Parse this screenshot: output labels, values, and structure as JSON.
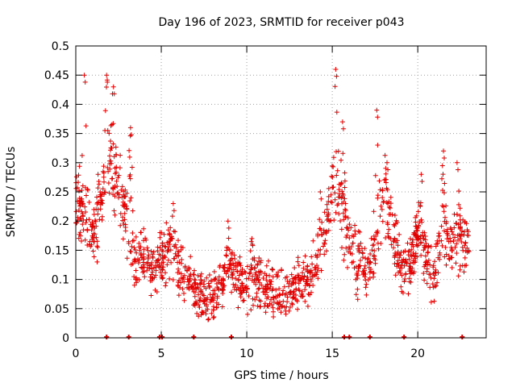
{
  "chart_data": {
    "type": "scatter",
    "title": "Day 196 of 2023, SRMTID for receiver p043",
    "xlabel": "GPS time / hours",
    "ylabel": "SRMTID / TECUs",
    "xlim": [
      0,
      24
    ],
    "ylim": [
      0,
      0.5
    ],
    "x_ticks": [
      0,
      5,
      10,
      15,
      20
    ],
    "y_ticks": [
      0,
      0.05,
      0.1,
      0.15,
      0.2,
      0.25,
      0.3,
      0.35,
      0.4,
      0.45,
      0.5
    ],
    "x_tick_labels": [
      "0",
      "5",
      "10",
      "15",
      "20"
    ],
    "y_tick_labels": [
      "0",
      "0.05",
      "0.1",
      "0.15",
      "0.2",
      "0.25",
      "0.3",
      "0.35",
      "0.4",
      "0.45",
      "0.5"
    ],
    "grid": true,
    "marker": "+",
    "color": "#e00000",
    "trend": [
      [
        0.0,
        0.24
      ],
      [
        0.5,
        0.2
      ],
      [
        1.0,
        0.17
      ],
      [
        1.5,
        0.22
      ],
      [
        2.0,
        0.28
      ],
      [
        2.5,
        0.24
      ],
      [
        3.0,
        0.2
      ],
      [
        3.5,
        0.12
      ],
      [
        4.0,
        0.14
      ],
      [
        4.5,
        0.11
      ],
      [
        5.0,
        0.13
      ],
      [
        5.5,
        0.16
      ],
      [
        6.0,
        0.12
      ],
      [
        6.5,
        0.1
      ],
      [
        7.0,
        0.08
      ],
      [
        7.5,
        0.07
      ],
      [
        8.0,
        0.07
      ],
      [
        8.5,
        0.09
      ],
      [
        9.0,
        0.12
      ],
      [
        9.5,
        0.1
      ],
      [
        10.0,
        0.09
      ],
      [
        10.5,
        0.1
      ],
      [
        11.0,
        0.08
      ],
      [
        11.5,
        0.08
      ],
      [
        12.0,
        0.07
      ],
      [
        12.5,
        0.08
      ],
      [
        13.0,
        0.1
      ],
      [
        13.5,
        0.1
      ],
      [
        14.0,
        0.11
      ],
      [
        14.5,
        0.17
      ],
      [
        15.0,
        0.25
      ],
      [
        15.5,
        0.22
      ],
      [
        16.0,
        0.16
      ],
      [
        16.5,
        0.13
      ],
      [
        17.0,
        0.12
      ],
      [
        17.5,
        0.14
      ],
      [
        18.0,
        0.25
      ],
      [
        18.5,
        0.19
      ],
      [
        19.0,
        0.13
      ],
      [
        19.5,
        0.12
      ],
      [
        20.0,
        0.17
      ],
      [
        20.5,
        0.14
      ],
      [
        21.0,
        0.11
      ],
      [
        21.5,
        0.19
      ],
      [
        22.0,
        0.14
      ],
      [
        22.5,
        0.17
      ],
      [
        23.0,
        0.17
      ]
    ],
    "peaks": [
      [
        0.5,
        0.45
      ],
      [
        1.3,
        0.28
      ],
      [
        1.8,
        0.45
      ],
      [
        2.2,
        0.43
      ],
      [
        3.2,
        0.36
      ],
      [
        5.7,
        0.23
      ],
      [
        8.9,
        0.2
      ],
      [
        10.3,
        0.17
      ],
      [
        14.3,
        0.25
      ],
      [
        15.2,
        0.46
      ],
      [
        15.6,
        0.37
      ],
      [
        17.6,
        0.39
      ],
      [
        18.2,
        0.3
      ],
      [
        20.2,
        0.28
      ],
      [
        21.5,
        0.32
      ],
      [
        22.3,
        0.3
      ]
    ],
    "bottom_markers": [
      1.8,
      3.1,
      4.9,
      5.05,
      6.9,
      9.1,
      15.7,
      16.0,
      17.2,
      19.2,
      22.6
    ]
  }
}
